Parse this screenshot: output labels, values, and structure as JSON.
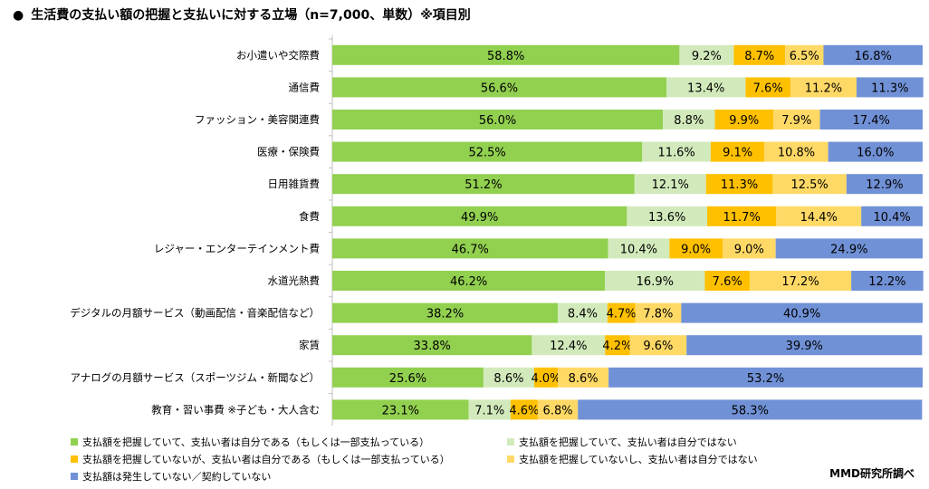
{
  "title": "生活費の支払い額の把握と支払いに対する立場（n=7,000、単数）※項目別",
  "bullet": "●",
  "credit": "MMD研究所調べ",
  "colors": [
    "#92D050",
    "#D2EABB",
    "#FFC000",
    "#FFD966",
    "#7091D6"
  ],
  "chart_data": {
    "type": "bar",
    "orientation": "horizontal",
    "stacked": "percent",
    "categories": [
      "お小遣いや交際費",
      "通信費",
      "ファッション・美容関連費",
      "医療・保険費",
      "日用雑貨費",
      "食費",
      "レジャー・エンターテインメント費",
      "水道光熱費",
      "デジタルの月額サービス（動画配信・音楽配信など）",
      "家賃",
      "アナログの月額サービス（スポーツジム・新聞など）",
      "教育・習い事費 ※子ども・大人含む"
    ],
    "series": [
      {
        "name": "支払額を把握していて、支払い者は自分である（もしくは一部支払っている）",
        "values": [
          58.8,
          56.6,
          56.0,
          52.5,
          51.2,
          49.9,
          46.7,
          46.2,
          38.2,
          33.8,
          25.6,
          23.1
        ]
      },
      {
        "name": "支払額を把握していて、支払い者は自分ではない",
        "values": [
          9.2,
          13.4,
          8.8,
          11.6,
          12.1,
          13.6,
          10.4,
          16.9,
          8.4,
          12.4,
          8.6,
          7.1
        ]
      },
      {
        "name": "支払額を把握していないが、支払い者は自分である（もしくは一部支払っている）",
        "values": [
          8.7,
          7.6,
          9.9,
          9.1,
          11.3,
          11.7,
          9.0,
          7.6,
          4.7,
          4.2,
          4.0,
          4.6
        ]
      },
      {
        "name": "支払額を把握していないし、支払い者は自分ではない",
        "values": [
          6.5,
          11.2,
          7.9,
          10.8,
          12.5,
          14.4,
          9.0,
          17.2,
          7.8,
          9.6,
          8.6,
          6.8
        ]
      },
      {
        "name": "支払額は発生していない／契約していない",
        "values": [
          16.8,
          11.3,
          17.4,
          16.0,
          12.9,
          10.4,
          24.9,
          12.2,
          40.9,
          39.9,
          53.2,
          58.3
        ]
      }
    ],
    "value_suffix": "%",
    "legend": "bottom",
    "grid": false
  }
}
